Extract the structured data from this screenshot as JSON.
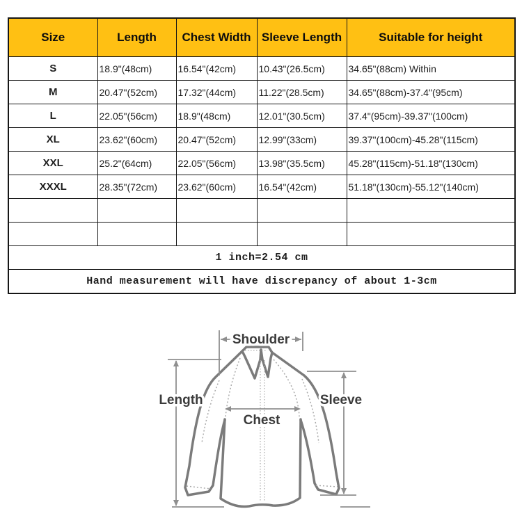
{
  "chart_data": {
    "type": "table",
    "columns": [
      "Size",
      "Length",
      "Chest Width",
      "Sleeve Length",
      "Suitable for height"
    ],
    "rows": [
      [
        "S",
        "18.9\"(48cm)",
        "16.54\"(42cm)",
        "10.43\"(26.5cm)",
        "34.65\"(88cm) Within"
      ],
      [
        "M",
        "20.47\"(52cm)",
        "17.32\"(44cm)",
        "11.22\"(28.5cm)",
        "34.65\"(88cm)-37.4\"(95cm)"
      ],
      [
        "L",
        "22.05\"(56cm)",
        "18.9\"(48cm)",
        "12.01\"(30.5cm)",
        "37.4\"(95cm)-39.37\"(100cm)"
      ],
      [
        "XL",
        "23.62\"(60cm)",
        "20.47\"(52cm)",
        "12.99\"(33cm)",
        "39.37\"(100cm)-45.28\"(115cm)"
      ],
      [
        "XXL",
        "25.2\"(64cm)",
        "22.05\"(56cm)",
        "13.98\"(35.5cm)",
        "45.28\"(115cm)-51.18\"(130cm)"
      ],
      [
        "XXXL",
        "28.35\"(72cm)",
        "23.62\"(60cm)",
        "16.54\"(42cm)",
        "51.18\"(130cm)-55.12\"(140cm)"
      ],
      [
        "",
        "",
        "",
        "",
        ""
      ],
      [
        "",
        "",
        "",
        "",
        ""
      ]
    ],
    "notes": [
      "1 inch=2.54 cm",
      "Hand measurement will have discrepancy of about 1-3cm"
    ],
    "header_bg": "#ffc013",
    "grid": true
  },
  "diagram": {
    "labels": {
      "shoulder": "Shoulder",
      "length": "Length",
      "sleeve": "Sleeve",
      "chest": "Chest"
    }
  }
}
